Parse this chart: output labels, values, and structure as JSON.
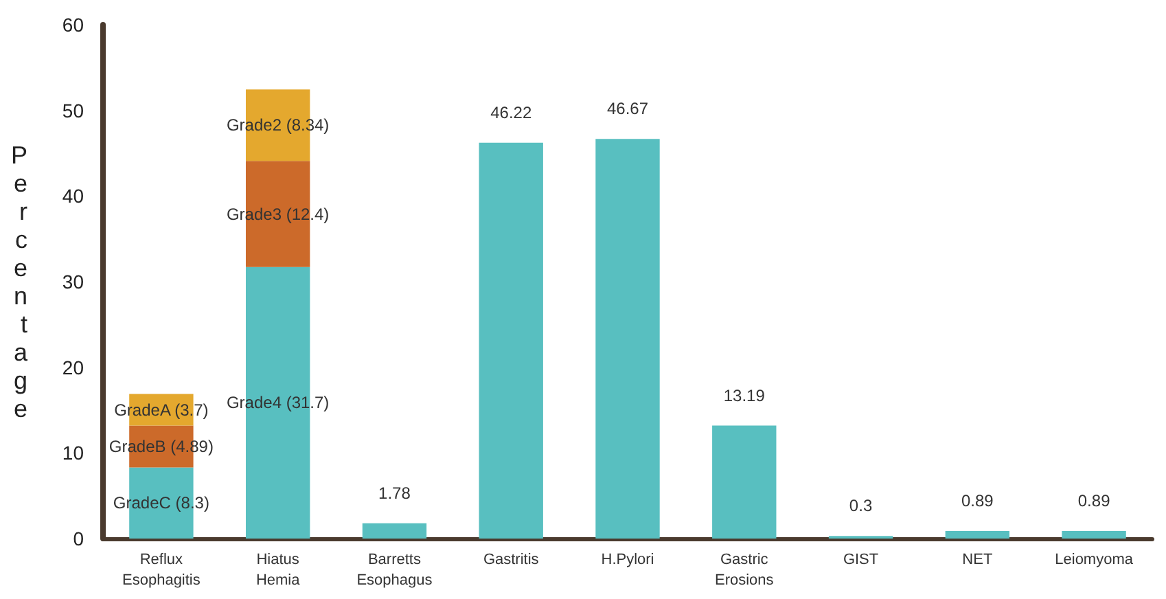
{
  "chart_data": {
    "type": "bar",
    "stacked": true,
    "ylabel": "Percentage",
    "categories": [
      "Reflux Esophagitis",
      "Hiatus Hemia",
      "Barretts Esophagus",
      "Gastritis",
      "H.Pylori",
      "Gastric Erosions",
      "GIST",
      "NET",
      "Leiomyoma"
    ],
    "series": [
      {
        "color": "#58bfc0",
        "values": [
          8.3,
          31.7,
          1.78,
          46.22,
          46.67,
          13.19,
          0.3,
          0.89,
          0.89
        ],
        "value_labels": [
          "GradeC (8.3)",
          "Grade4 (31.7)",
          "1.78",
          "46.22",
          "46.67",
          "13.19",
          "0.3",
          "0.89",
          "0.89"
        ]
      },
      {
        "color": "#cc6a2a",
        "values": [
          4.89,
          12.4,
          null,
          null,
          null,
          null,
          null,
          null,
          null
        ],
        "value_labels": [
          "GradeB (4.89)",
          "Grade3 (12.4)",
          null,
          null,
          null,
          null,
          null,
          null,
          null
        ]
      },
      {
        "color": "#e4a82e",
        "values": [
          3.7,
          8.34,
          null,
          null,
          null,
          null,
          null,
          null,
          null
        ],
        "value_labels": [
          "GradeA (3.7)",
          "Grade2 (8.34)",
          null,
          null,
          null,
          null,
          null,
          null,
          null
        ]
      }
    ],
    "ylim": [
      0,
      60
    ],
    "yticks": [
      0,
      10,
      20,
      30,
      40,
      50,
      60
    ],
    "grid": false
  }
}
